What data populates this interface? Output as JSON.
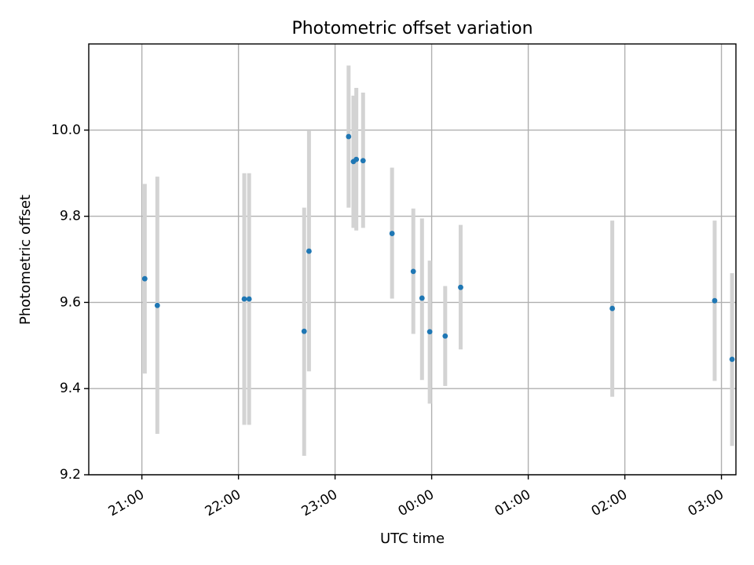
{
  "chart_data": {
    "type": "scatter",
    "title": "Photometric offset variation",
    "xlabel": "UTC time",
    "ylabel": "Photometric offset",
    "x_unit": "hours",
    "xlim": [
      -0.55,
      6.15
    ],
    "ylim": [
      9.2,
      10.2
    ],
    "x_ticks": [
      {
        "value": 0,
        "label": "21:00"
      },
      {
        "value": 1,
        "label": "22:00"
      },
      {
        "value": 2,
        "label": "23:00"
      },
      {
        "value": 3,
        "label": "00:00"
      },
      {
        "value": 4,
        "label": "01:00"
      },
      {
        "value": 5,
        "label": "02:00"
      },
      {
        "value": 6,
        "label": "03:00"
      }
    ],
    "y_ticks": [
      {
        "value": 9.2,
        "label": "9.2"
      },
      {
        "value": 9.4,
        "label": "9.4"
      },
      {
        "value": 9.6,
        "label": "9.6"
      },
      {
        "value": 9.8,
        "label": "9.8"
      },
      {
        "value": 10.0,
        "label": "10.0"
      }
    ],
    "grid": true,
    "colors": {
      "point": "#1f77b4",
      "errorbar": "#d3d3d3",
      "grid": "#b0b0b0"
    },
    "points": [
      {
        "time": "21:02",
        "x": 0.03,
        "y": 9.655,
        "ylow": 9.435,
        "yhigh": 9.875
      },
      {
        "time": "21:09",
        "x": 0.16,
        "y": 9.593,
        "ylow": 9.295,
        "yhigh": 9.892
      },
      {
        "time": "22:04",
        "x": 1.06,
        "y": 9.608,
        "ylow": 9.316,
        "yhigh": 9.9
      },
      {
        "time": "22:07",
        "x": 1.11,
        "y": 9.608,
        "ylow": 9.316,
        "yhigh": 9.9
      },
      {
        "time": "22:41",
        "x": 1.68,
        "y": 9.533,
        "ylow": 9.244,
        "yhigh": 9.82
      },
      {
        "time": "22:44",
        "x": 1.73,
        "y": 9.719,
        "ylow": 9.44,
        "yhigh": 9.998
      },
      {
        "time": "23:08",
        "x": 2.14,
        "y": 9.985,
        "ylow": 9.82,
        "yhigh": 10.15
      },
      {
        "time": "23:11",
        "x": 2.19,
        "y": 9.927,
        "ylow": 9.773,
        "yhigh": 10.08
      },
      {
        "time": "23:13",
        "x": 2.22,
        "y": 9.932,
        "ylow": 9.767,
        "yhigh": 10.098
      },
      {
        "time": "23:17",
        "x": 2.29,
        "y": 9.929,
        "ylow": 9.773,
        "yhigh": 10.087
      },
      {
        "time": "23:35",
        "x": 2.59,
        "y": 9.76,
        "ylow": 9.609,
        "yhigh": 9.913
      },
      {
        "time": "23:49",
        "x": 2.81,
        "y": 9.672,
        "ylow": 9.527,
        "yhigh": 9.818
      },
      {
        "time": "23:55",
        "x": 2.9,
        "y": 9.61,
        "ylow": 9.42,
        "yhigh": 9.795
      },
      {
        "time": "23:59",
        "x": 2.98,
        "y": 9.532,
        "ylow": 9.365,
        "yhigh": 9.697
      },
      {
        "time": "00:08",
        "x": 3.14,
        "y": 9.522,
        "ylow": 9.406,
        "yhigh": 9.638
      },
      {
        "time": "00:18",
        "x": 3.3,
        "y": 9.635,
        "ylow": 9.491,
        "yhigh": 9.78
      },
      {
        "time": "01:52",
        "x": 4.87,
        "y": 9.586,
        "ylow": 9.381,
        "yhigh": 9.79
      },
      {
        "time": "02:56",
        "x": 5.93,
        "y": 9.604,
        "ylow": 9.418,
        "yhigh": 9.79
      },
      {
        "time": "03:07",
        "x": 6.11,
        "y": 9.468,
        "ylow": 9.267,
        "yhigh": 9.668
      }
    ]
  }
}
